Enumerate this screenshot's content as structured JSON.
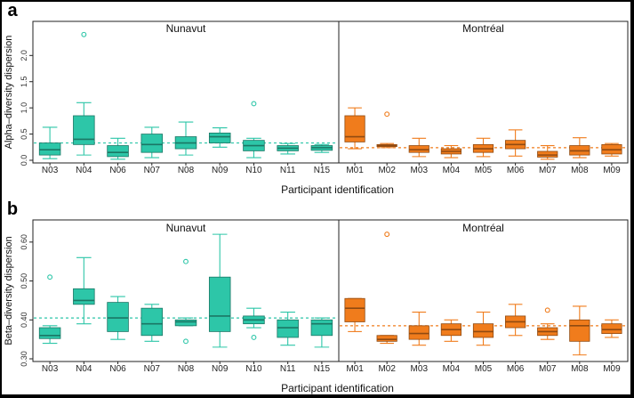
{
  "figure": {
    "background": "#000000",
    "paper": "#ffffff"
  },
  "colors": {
    "nunavut": "#2dc6a8",
    "montreal": "#f07c1c",
    "outline_dark": "#555555"
  },
  "chart_data": [
    {
      "type": "box",
      "panel_label": "a",
      "ylabel": "Alpha–diversity dispersion",
      "xlabel": "Participant identification",
      "ylim": [
        0,
        2.6
      ],
      "yticks": [
        "0.0",
        "0.5",
        "1.0",
        "1.5",
        "2.0"
      ],
      "reference_lines": {
        "Nunavut": 0.33,
        "Montréal": 0.24
      },
      "groups": [
        {
          "name": "Nunavut",
          "color": "#2dc6a8",
          "participants": [
            {
              "id": "N03",
              "min": 0.03,
              "q1": 0.1,
              "median": 0.2,
              "q3": 0.33,
              "max": 0.63,
              "outliers": []
            },
            {
              "id": "N04",
              "min": 0.1,
              "q1": 0.3,
              "median": 0.4,
              "q3": 0.85,
              "max": 1.1,
              "outliers": [
                2.4
              ]
            },
            {
              "id": "N06",
              "min": 0.02,
              "q1": 0.07,
              "median": 0.15,
              "q3": 0.28,
              "max": 0.42,
              "outliers": []
            },
            {
              "id": "N07",
              "min": 0.05,
              "q1": 0.15,
              "median": 0.3,
              "q3": 0.5,
              "max": 0.63,
              "outliers": []
            },
            {
              "id": "N08",
              "min": 0.1,
              "q1": 0.22,
              "median": 0.33,
              "q3": 0.45,
              "max": 0.73,
              "outliers": []
            },
            {
              "id": "N09",
              "min": 0.25,
              "q1": 0.33,
              "median": 0.45,
              "q3": 0.52,
              "max": 0.62,
              "outliers": []
            },
            {
              "id": "N10",
              "min": 0.05,
              "q1": 0.18,
              "median": 0.28,
              "q3": 0.38,
              "max": 0.42,
              "outliers": [
                1.08
              ]
            },
            {
              "id": "N11",
              "min": 0.12,
              "q1": 0.18,
              "median": 0.23,
              "q3": 0.28,
              "max": 0.32,
              "outliers": []
            },
            {
              "id": "N15",
              "min": 0.15,
              "q1": 0.19,
              "median": 0.24,
              "q3": 0.28,
              "max": 0.3,
              "outliers": []
            }
          ]
        },
        {
          "name": "Montréal",
          "color": "#f07c1c",
          "participants": [
            {
              "id": "M01",
              "min": 0.22,
              "q1": 0.35,
              "median": 0.45,
              "q3": 0.85,
              "max": 1.0,
              "outliers": []
            },
            {
              "id": "M02",
              "min": 0.24,
              "q1": 0.26,
              "median": 0.28,
              "q3": 0.3,
              "max": 0.32,
              "outliers": [
                0.88
              ]
            },
            {
              "id": "M03",
              "min": 0.07,
              "q1": 0.15,
              "median": 0.2,
              "q3": 0.28,
              "max": 0.42,
              "outliers": []
            },
            {
              "id": "M04",
              "min": 0.05,
              "q1": 0.12,
              "median": 0.17,
              "q3": 0.22,
              "max": 0.28,
              "outliers": []
            },
            {
              "id": "M05",
              "min": 0.07,
              "q1": 0.15,
              "median": 0.22,
              "q3": 0.3,
              "max": 0.42,
              "outliers": []
            },
            {
              "id": "M06",
              "min": 0.08,
              "q1": 0.22,
              "median": 0.3,
              "q3": 0.38,
              "max": 0.58,
              "outliers": []
            },
            {
              "id": "M07",
              "min": 0.02,
              "q1": 0.06,
              "median": 0.1,
              "q3": 0.17,
              "max": 0.28,
              "outliers": []
            },
            {
              "id": "M08",
              "min": 0.05,
              "q1": 0.1,
              "median": 0.18,
              "q3": 0.28,
              "max": 0.43,
              "outliers": []
            },
            {
              "id": "M09",
              "min": 0.08,
              "q1": 0.12,
              "median": 0.2,
              "q3": 0.3,
              "max": 0.32,
              "outliers": []
            }
          ]
        }
      ]
    },
    {
      "type": "box",
      "panel_label": "b",
      "ylabel": "Beta–diversity dispersion",
      "xlabel": "Participant identification",
      "ylim": [
        0.3,
        0.65
      ],
      "yticks": [
        "0.30",
        "0.40",
        "0.50",
        "0.60"
      ],
      "reference_lines": {
        "Nunavut": 0.405,
        "Montréal": 0.385
      },
      "groups": [
        {
          "name": "Nunavut",
          "color": "#2dc6a8",
          "participants": [
            {
              "id": "N03",
              "min": 0.34,
              "q1": 0.352,
              "median": 0.36,
              "q3": 0.38,
              "max": 0.385,
              "outliers": [
                0.51
              ]
            },
            {
              "id": "N04",
              "min": 0.39,
              "q1": 0.44,
              "median": 0.45,
              "q3": 0.48,
              "max": 0.56,
              "outliers": []
            },
            {
              "id": "N06",
              "min": 0.35,
              "q1": 0.37,
              "median": 0.405,
              "q3": 0.445,
              "max": 0.46,
              "outliers": []
            },
            {
              "id": "N07",
              "min": 0.345,
              "q1": 0.36,
              "median": 0.39,
              "q3": 0.43,
              "max": 0.44,
              "outliers": []
            },
            {
              "id": "N08",
              "min": 0.385,
              "q1": 0.385,
              "median": 0.395,
              "q3": 0.4,
              "max": 0.405,
              "outliers": [
                0.345,
                0.55
              ]
            },
            {
              "id": "N09",
              "min": 0.33,
              "q1": 0.37,
              "median": 0.41,
              "q3": 0.51,
              "max": 0.62,
              "outliers": []
            },
            {
              "id": "N10",
              "min": 0.38,
              "q1": 0.39,
              "median": 0.4,
              "q3": 0.41,
              "max": 0.43,
              "outliers": [
                0.355
              ]
            },
            {
              "id": "N11",
              "min": 0.335,
              "q1": 0.355,
              "median": 0.38,
              "q3": 0.4,
              "max": 0.42,
              "outliers": []
            },
            {
              "id": "N15",
              "min": 0.33,
              "q1": 0.36,
              "median": 0.39,
              "q3": 0.4,
              "max": 0.405,
              "outliers": []
            }
          ]
        },
        {
          "name": "Montréal",
          "color": "#f07c1c",
          "participants": [
            {
              "id": "M01",
              "min": 0.37,
              "q1": 0.395,
              "median": 0.43,
              "q3": 0.455,
              "max": 0.455,
              "outliers": []
            },
            {
              "id": "M02",
              "min": 0.34,
              "q1": 0.345,
              "median": 0.35,
              "q3": 0.36,
              "max": 0.36,
              "outliers": [
                0.62
              ]
            },
            {
              "id": "M03",
              "min": 0.335,
              "q1": 0.35,
              "median": 0.365,
              "q3": 0.385,
              "max": 0.42,
              "outliers": []
            },
            {
              "id": "M04",
              "min": 0.345,
              "q1": 0.36,
              "median": 0.375,
              "q3": 0.39,
              "max": 0.4,
              "outliers": []
            },
            {
              "id": "M05",
              "min": 0.335,
              "q1": 0.355,
              "median": 0.37,
              "q3": 0.39,
              "max": 0.42,
              "outliers": []
            },
            {
              "id": "M06",
              "min": 0.36,
              "q1": 0.38,
              "median": 0.395,
              "q3": 0.41,
              "max": 0.44,
              "outliers": []
            },
            {
              "id": "M07",
              "min": 0.35,
              "q1": 0.36,
              "median": 0.37,
              "q3": 0.38,
              "max": 0.39,
              "outliers": [
                0.425
              ]
            },
            {
              "id": "M08",
              "min": 0.31,
              "q1": 0.345,
              "median": 0.385,
              "q3": 0.4,
              "max": 0.435,
              "outliers": []
            },
            {
              "id": "M09",
              "min": 0.355,
              "q1": 0.365,
              "median": 0.375,
              "q3": 0.39,
              "max": 0.4,
              "outliers": []
            }
          ]
        }
      ]
    }
  ]
}
